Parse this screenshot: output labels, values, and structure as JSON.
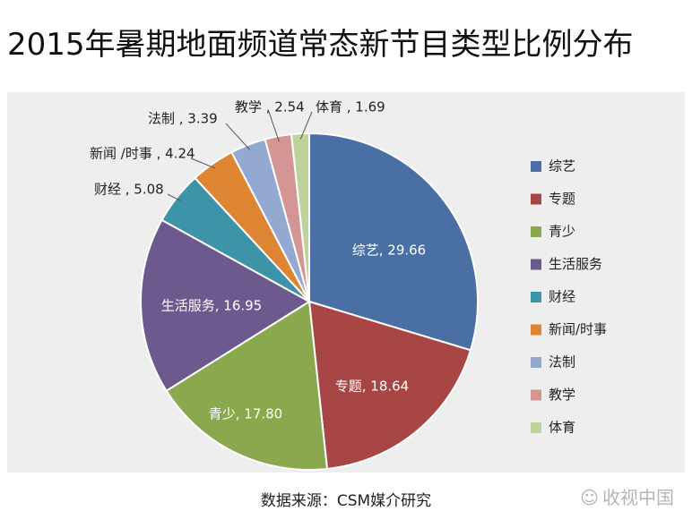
{
  "header": {
    "title": "2015年暑期地面频道常态新节目类型比例分布"
  },
  "footer": {
    "source": "数据来源：CSM媒介研究",
    "watermark": "收视中国",
    "watermark_icon": "wechat-icon"
  },
  "chart_data": {
    "type": "pie",
    "title": "2015年暑期地面频道常态新节目类型比例分布",
    "legend_position": "right",
    "slices": [
      {
        "name": "综艺",
        "legend": "综艺",
        "label": "综艺, 29.66",
        "value": 29.66,
        "color": "#4a6fa5"
      },
      {
        "name": "专题",
        "legend": "专题",
        "label": "专题, 18.64",
        "value": 18.64,
        "color": "#a84646"
      },
      {
        "name": "青少",
        "legend": "青少",
        "label": "青少, 17.80",
        "value": 17.8,
        "color": "#8aa84e"
      },
      {
        "name": "生活服务",
        "legend": "生活服务",
        "label": "生活服务, 16.95",
        "value": 16.95,
        "color": "#6c5a8e"
      },
      {
        "name": "财经",
        "legend": "财经",
        "label": "财经 , 5.08",
        "value": 5.08,
        "color": "#3d93a8"
      },
      {
        "name": "新闻/时事",
        "legend": "新闻/时事",
        "label": "新闻 /时事 , 4.24",
        "value": 4.24,
        "color": "#dd8533"
      },
      {
        "name": "法制",
        "legend": "法制",
        "label": "法制 , 3.39",
        "value": 3.39,
        "color": "#93a9d0"
      },
      {
        "name": "教学",
        "legend": "教学",
        "label": "教学 , 2.54",
        "value": 2.54,
        "color": "#d49595"
      },
      {
        "name": "体育",
        "legend": "体育",
        "label": "体育 , 1.69",
        "value": 1.69,
        "color": "#bdd39a"
      }
    ]
  }
}
